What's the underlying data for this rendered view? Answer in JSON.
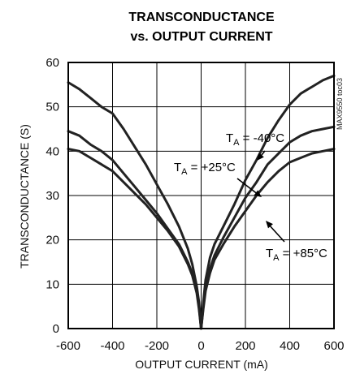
{
  "chart_data": {
    "type": "line",
    "title_line1": "TRANSCONDUCTANCE",
    "title_line2": "vs. OUTPUT CURRENT",
    "xlabel": "OUTPUT CURRENT (mA)",
    "ylabel": "TRANSCONDUCTANCE (S)",
    "side_label": "MAX9550 toc03",
    "xlim": [
      -600,
      600
    ],
    "ylim": [
      0,
      60
    ],
    "xticks": [
      -600,
      -400,
      -200,
      0,
      200,
      400,
      600
    ],
    "yticks": [
      0,
      10,
      20,
      30,
      40,
      50,
      60
    ],
    "grid": true,
    "x": [
      -600,
      -550,
      -500,
      -450,
      -400,
      -350,
      -300,
      -250,
      -200,
      -150,
      -100,
      -60,
      -40,
      -20,
      -10,
      0,
      10,
      20,
      40,
      60,
      100,
      150,
      200,
      250,
      300,
      350,
      400,
      450,
      500,
      550,
      600
    ],
    "series": [
      {
        "name": "-40°C",
        "label_sub": "A",
        "label_main": "T",
        "label_value": " = -40°C",
        "values": [
          55.5,
          54,
          52,
          50,
          48.5,
          45,
          41,
          37,
          32.5,
          28,
          23,
          18,
          14.5,
          9.5,
          6,
          0,
          6,
          11,
          16,
          19,
          23,
          28,
          33.5,
          38,
          43,
          47,
          50.5,
          53,
          54.5,
          56,
          57
        ]
      },
      {
        "name": "+25°C",
        "label_sub": "A",
        "label_main": "T",
        "label_value": " = +25°C",
        "values": [
          44.5,
          43.5,
          41.5,
          40,
          38,
          35,
          32,
          29,
          26,
          22.5,
          19,
          15,
          12.5,
          8.5,
          5,
          0,
          5,
          9,
          13.5,
          16.5,
          20.5,
          25,
          29.5,
          33,
          37,
          39.5,
          42,
          43.5,
          44.5,
          45,
          45.5
        ]
      },
      {
        "name": "+85°C",
        "label_sub": "A",
        "label_main": "T",
        "label_value": " = +85°C",
        "values": [
          40.5,
          40,
          38.5,
          37,
          35.5,
          33,
          30.5,
          28,
          25,
          22,
          18.5,
          14.5,
          12,
          8,
          4.5,
          0,
          4.5,
          8.5,
          12.5,
          15.5,
          19,
          23,
          26.5,
          30,
          33,
          35.5,
          37.5,
          38.5,
          39.5,
          40,
          40.5
        ]
      }
    ]
  }
}
